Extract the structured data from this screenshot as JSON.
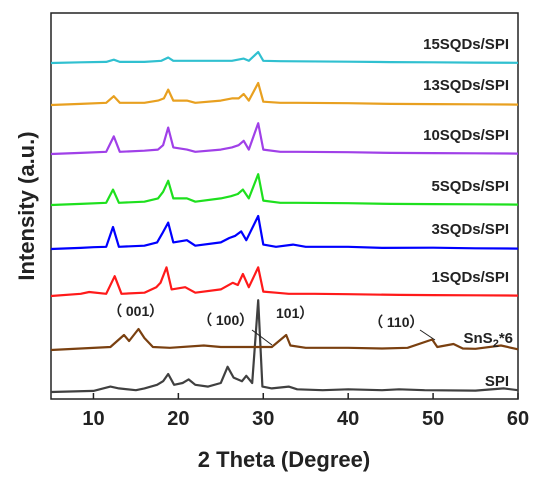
{
  "chart_data": {
    "type": "line",
    "xlabel": "2 Theta (Degree)",
    "ylabel": "Intensity (a.u.)",
    "xlim": [
      5,
      60
    ],
    "xticks": [
      "10",
      "20",
      "30",
      "40",
      "50",
      "60"
    ],
    "grid": false,
    "series": [
      {
        "name": "SPI",
        "color": "#404040",
        "points": [
          [
            5,
            0
          ],
          [
            10,
            0.6
          ],
          [
            12,
            3
          ],
          [
            13,
            2
          ],
          [
            15,
            1
          ],
          [
            16,
            2
          ],
          [
            17.5,
            4
          ],
          [
            18.2,
            6
          ],
          [
            18.8,
            10
          ],
          [
            19.5,
            4
          ],
          [
            20.5,
            5
          ],
          [
            21.2,
            7
          ],
          [
            22,
            4
          ],
          [
            23.5,
            3
          ],
          [
            25,
            5
          ],
          [
            25.8,
            14
          ],
          [
            26.5,
            8
          ],
          [
            27.5,
            6
          ],
          [
            28,
            9
          ],
          [
            28.7,
            5
          ],
          [
            29.4,
            51
          ],
          [
            29.9,
            3
          ],
          [
            31,
            2
          ],
          [
            33,
            3
          ],
          [
            34,
            1.5
          ],
          [
            37,
            1
          ],
          [
            40,
            1.5
          ],
          [
            44,
            1
          ],
          [
            46,
            1.5
          ],
          [
            49,
            1
          ],
          [
            55,
            0.8
          ],
          [
            58.3,
            2
          ],
          [
            60,
            1
          ]
        ]
      },
      {
        "name": "SnS$_2$*6",
        "color": "#7a4010",
        "points": [
          [
            5,
            0
          ],
          [
            12,
            2
          ],
          [
            13.6,
            10
          ],
          [
            14.2,
            6
          ],
          [
            15.3,
            14
          ],
          [
            16,
            8
          ],
          [
            17,
            2
          ],
          [
            19,
            1.5
          ],
          [
            23,
            3
          ],
          [
            25,
            2
          ],
          [
            27,
            2
          ],
          [
            28.5,
            2
          ],
          [
            29,
            2
          ],
          [
            31,
            2
          ],
          [
            32.7,
            10
          ],
          [
            33.2,
            3
          ],
          [
            35,
            1.5
          ],
          [
            40,
            1.5
          ],
          [
            44,
            1
          ],
          [
            47,
            1.5
          ],
          [
            49.9,
            7
          ],
          [
            50.5,
            2
          ],
          [
            52.4,
            4
          ],
          [
            53.5,
            1
          ],
          [
            55,
            0.8
          ],
          [
            58,
            3
          ],
          [
            60,
            0.5
          ]
        ]
      },
      {
        "name": "1SQDs/SPI",
        "color": "#ff1a1a",
        "points": [
          [
            5,
            0
          ],
          [
            8.5,
            1
          ],
          [
            9.5,
            1.8
          ],
          [
            11.5,
            1
          ],
          [
            12.5,
            9
          ],
          [
            13.3,
            1
          ],
          [
            16,
            1.5
          ],
          [
            17.4,
            4
          ],
          [
            17.9,
            6
          ],
          [
            18.6,
            13
          ],
          [
            19.2,
            3
          ],
          [
            20.8,
            4
          ],
          [
            22,
            1.5
          ],
          [
            25,
            3
          ],
          [
            26.4,
            6
          ],
          [
            27,
            5
          ],
          [
            27.6,
            10
          ],
          [
            28.3,
            4
          ],
          [
            29.4,
            13
          ],
          [
            30,
            2
          ],
          [
            31.5,
            1.5
          ],
          [
            33,
            1
          ],
          [
            36,
            1
          ],
          [
            40,
            0.8
          ],
          [
            46,
            0.5
          ],
          [
            50,
            0.4
          ],
          [
            55,
            0.3
          ],
          [
            60,
            0.2
          ]
        ]
      },
      {
        "name": "3SQDs/SPI",
        "color": "#0000ff",
        "points": [
          [
            5,
            0
          ],
          [
            8.5,
            0.5
          ],
          [
            10,
            0.8
          ],
          [
            11.5,
            1
          ],
          [
            12.3,
            10
          ],
          [
            13,
            1
          ],
          [
            16,
            1.5
          ],
          [
            17.5,
            3
          ],
          [
            18.1,
            7
          ],
          [
            18.8,
            12
          ],
          [
            19.4,
            3
          ],
          [
            21,
            4
          ],
          [
            22,
            1.5
          ],
          [
            25,
            3
          ],
          [
            26,
            5
          ],
          [
            26.7,
            6
          ],
          [
            27.4,
            8
          ],
          [
            28,
            4
          ],
          [
            29.4,
            15
          ],
          [
            30,
            2
          ],
          [
            31.5,
            1
          ],
          [
            33.5,
            2
          ],
          [
            35,
            1
          ],
          [
            40,
            1
          ],
          [
            44,
            0.5
          ],
          [
            50,
            0.6
          ],
          [
            55,
            0.3
          ],
          [
            60,
            0.2
          ]
        ]
      },
      {
        "name": "5SQDs/SPI",
        "color": "#1ee01e",
        "points": [
          [
            5,
            0
          ],
          [
            8.5,
            0.5
          ],
          [
            11.5,
            1
          ],
          [
            12.3,
            7
          ],
          [
            13,
            1
          ],
          [
            16,
            1.5
          ],
          [
            17.6,
            3
          ],
          [
            18.2,
            6
          ],
          [
            18.8,
            11
          ],
          [
            19.4,
            3
          ],
          [
            21,
            3
          ],
          [
            22,
            1.5
          ],
          [
            25,
            3
          ],
          [
            26.2,
            4
          ],
          [
            27,
            5
          ],
          [
            27.6,
            7
          ],
          [
            28.3,
            3
          ],
          [
            29.4,
            14
          ],
          [
            30,
            2
          ],
          [
            32,
            1
          ],
          [
            34,
            1
          ],
          [
            40,
            0.8
          ],
          [
            45,
            0.5
          ],
          [
            50,
            0.4
          ],
          [
            55,
            0.3
          ],
          [
            60,
            0.2
          ]
        ]
      },
      {
        "name": "10SQDs/SPI",
        "color": "#a040e8",
        "points": [
          [
            5,
            0
          ],
          [
            8.5,
            0.5
          ],
          [
            11.5,
            1
          ],
          [
            12.4,
            8
          ],
          [
            13.1,
            1
          ],
          [
            16,
            1.5
          ],
          [
            17.6,
            2
          ],
          [
            18.2,
            4
          ],
          [
            18.8,
            12
          ],
          [
            19.4,
            3
          ],
          [
            21,
            2
          ],
          [
            22,
            1
          ],
          [
            25,
            2
          ],
          [
            26.3,
            3
          ],
          [
            27.1,
            4
          ],
          [
            27.7,
            6
          ],
          [
            28.3,
            2
          ],
          [
            29.4,
            14
          ],
          [
            30,
            2
          ],
          [
            32,
            1
          ],
          [
            34,
            1
          ],
          [
            40,
            0.8
          ],
          [
            45,
            0.5
          ],
          [
            50,
            0.4
          ],
          [
            55,
            0.3
          ],
          [
            60,
            0.2
          ]
        ]
      },
      {
        "name": "13SQDs/SPI",
        "color": "#e8a020",
        "points": [
          [
            5,
            0
          ],
          [
            8.5,
            0.5
          ],
          [
            11.5,
            1
          ],
          [
            12.4,
            4
          ],
          [
            13.1,
            1
          ],
          [
            16,
            1
          ],
          [
            17.6,
            2
          ],
          [
            18.3,
            3
          ],
          [
            18.8,
            7
          ],
          [
            19.4,
            2
          ],
          [
            21,
            2
          ],
          [
            22,
            1
          ],
          [
            25,
            2
          ],
          [
            26.3,
            3
          ],
          [
            27.1,
            3
          ],
          [
            27.7,
            5
          ],
          [
            28.3,
            2
          ],
          [
            29.4,
            10
          ],
          [
            30,
            1.5
          ],
          [
            32,
            1
          ],
          [
            34,
            1
          ],
          [
            40,
            0.8
          ],
          [
            45,
            0.5
          ],
          [
            50,
            0.4
          ],
          [
            55,
            0.3
          ],
          [
            60,
            0.2
          ]
        ]
      },
      {
        "name": "15SQDs/SPI",
        "color": "#30c0d0",
        "points": [
          [
            5,
            0
          ],
          [
            8.5,
            0.3
          ],
          [
            11.5,
            0.5
          ],
          [
            12.4,
            1.5
          ],
          [
            13.1,
            0.5
          ],
          [
            16,
            0.5
          ],
          [
            18,
            1
          ],
          [
            18.8,
            2.5
          ],
          [
            19.4,
            1
          ],
          [
            21,
            1
          ],
          [
            25,
            1
          ],
          [
            26.3,
            1
          ],
          [
            27.7,
            2
          ],
          [
            28.3,
            1
          ],
          [
            29.4,
            5
          ],
          [
            30,
            1
          ],
          [
            32,
            0.8
          ],
          [
            40,
            0.6
          ],
          [
            45,
            0.4
          ],
          [
            50,
            0.3
          ],
          [
            55,
            0.2
          ],
          [
            60,
            0.1
          ]
        ]
      }
    ],
    "series_labels": [
      "SPI",
      "SnS",
      "2",
      "*6",
      "1SQDs/SPI",
      "3SQDs/SPI",
      "5SQDs/SPI",
      "10SQDs/SPI",
      "13SQDs/SPI",
      "15SQDs/SPI"
    ],
    "annotations": [
      {
        "text": "（ 001）",
        "x": 14.5
      },
      {
        "text": "（ 100）",
        "x": 25.5
      },
      {
        "text": "101）",
        "x": 32.5
      },
      {
        "text": "（ 110）",
        "x": 44.5
      }
    ]
  }
}
